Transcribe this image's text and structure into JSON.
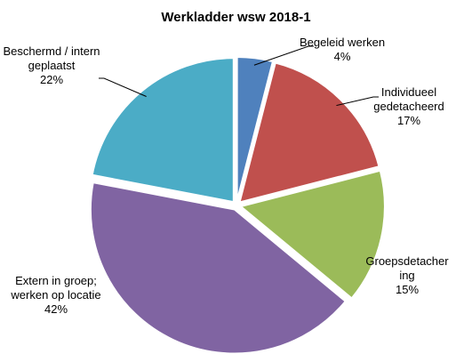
{
  "chart_data": {
    "type": "pie",
    "title": "Werkladder wsw 2018-1",
    "categories": [
      "Begeleid werken",
      "Individueel gedetacheerd",
      "Groepsdetachering",
      "Extern in groep; werken op locatie",
      "Beschermd / intern geplaatst"
    ],
    "values": [
      4,
      17,
      15,
      42,
      22
    ],
    "value_labels": [
      "4%",
      "17%",
      "15%",
      "42%",
      "22%"
    ],
    "colors": [
      "#4f81bd",
      "#c0504d",
      "#9bbb59",
      "#8064a2",
      "#4bacc6"
    ]
  }
}
